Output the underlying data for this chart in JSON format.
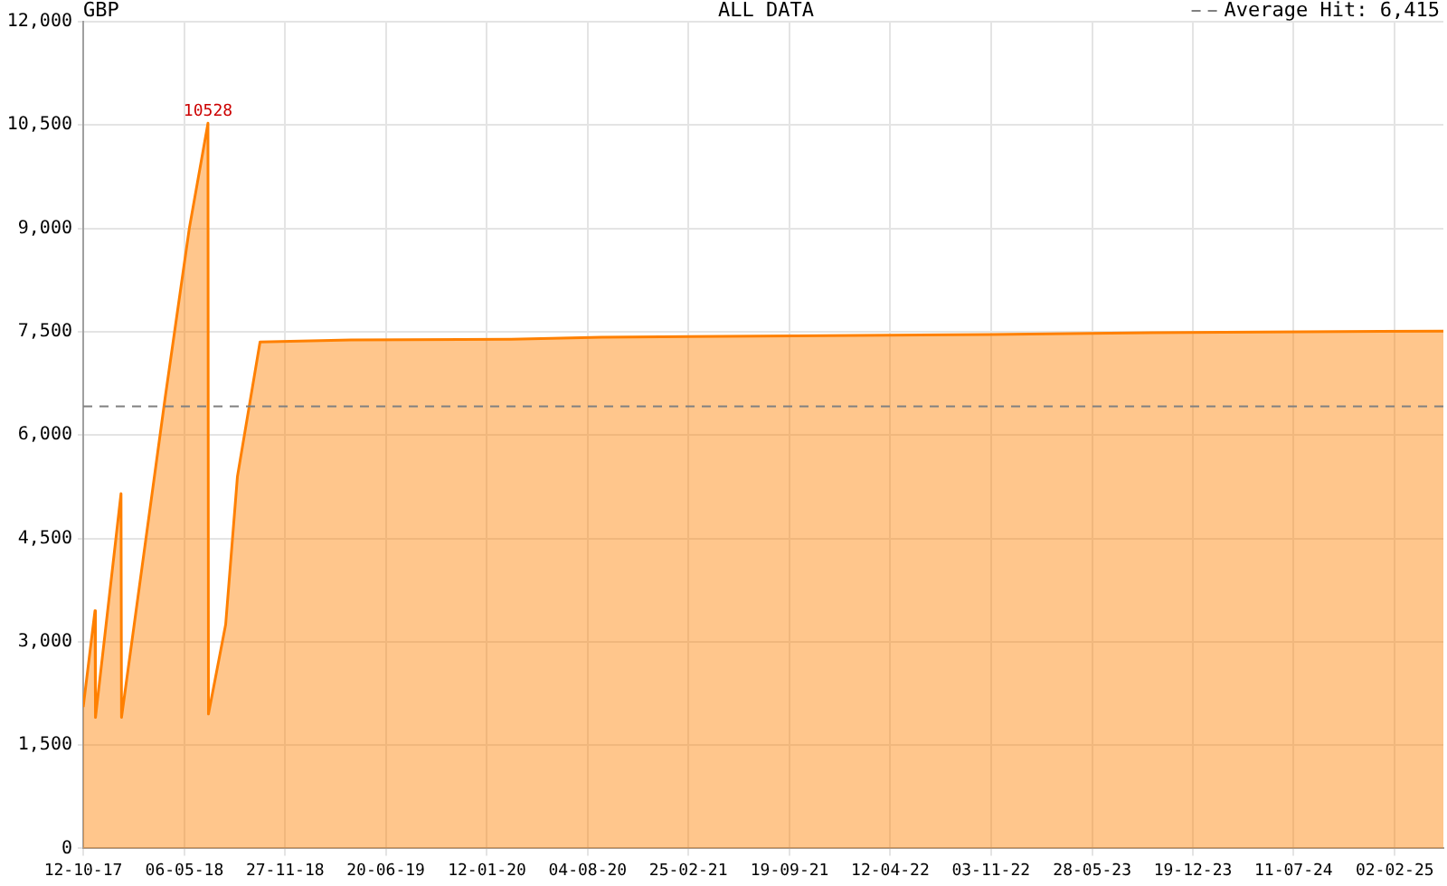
{
  "chart_data": {
    "type": "area",
    "title": "GBP",
    "subtitle": "ALL DATA",
    "series": [
      {
        "color": "#ff8000",
        "x": [
          "2017-10-12",
          "2017-11-05",
          "2017-11-06",
          "2017-12-28",
          "2017-12-29",
          "2018-03-28",
          "2018-05-16",
          "2018-06-23",
          "2018-06-24",
          "2018-07-29",
          "2018-08-22",
          "2018-10-07",
          "2019-04-10",
          "2020-03-01",
          "2020-09-01",
          "2021-10-01",
          "2022-11-01",
          "2023-12-01",
          "2025-05-12"
        ],
        "values": [
          2050,
          3450,
          1900,
          5150,
          1900,
          6550,
          9000,
          10528,
          1950,
          3250,
          5400,
          7350,
          7380,
          7390,
          7420,
          7440,
          7460,
          7490,
          7510
        ],
        "value_labels": [
          null,
          null,
          null,
          null,
          null,
          null,
          null,
          "10528",
          null,
          null,
          null,
          null,
          null,
          null,
          null,
          null,
          null,
          null,
          null
        ]
      }
    ],
    "xlim": [
      "2017-10-12",
      "2025-05-12"
    ],
    "xticks": [
      {
        "value": "2017-10-12",
        "label": "12-10-17"
      },
      {
        "value": "2018-05-06",
        "label": "06-05-18"
      },
      {
        "value": "2018-11-27",
        "label": "27-11-18"
      },
      {
        "value": "2019-06-20",
        "label": "20-06-19"
      },
      {
        "value": "2020-01-12",
        "label": "12-01-20"
      },
      {
        "value": "2020-08-04",
        "label": "04-08-20"
      },
      {
        "value": "2021-02-25",
        "label": "25-02-21"
      },
      {
        "value": "2021-09-19",
        "label": "19-09-21"
      },
      {
        "value": "2022-04-12",
        "label": "12-04-22"
      },
      {
        "value": "2022-11-03",
        "label": "03-11-22"
      },
      {
        "value": "2023-05-28",
        "label": "28-05-23"
      },
      {
        "value": "2023-12-19",
        "label": "19-12-23"
      },
      {
        "value": "2024-07-11",
        "label": "11-07-24"
      },
      {
        "value": "2025-02-02",
        "label": "02-02-25"
      }
    ],
    "ylim": [
      0,
      12000
    ],
    "yticks": [
      0,
      {
        "value": 1500,
        "label": "1,500"
      },
      {
        "value": 3000,
        "label": "3,000"
      },
      {
        "value": 4500,
        "label": "4,500"
      },
      {
        "value": 6000,
        "label": "6,000"
      },
      {
        "value": 7500,
        "label": "7,500"
      },
      {
        "value": 9000,
        "label": "9,000"
      },
      {
        "value": 10500,
        "label": "10,500"
      },
      {
        "value": 12000,
        "label": "12,000"
      }
    ],
    "grid": true,
    "ref_lines": [
      {
        "axis": "y",
        "value": 6415,
        "label": "Average Hit: 6,415",
        "color": "#808080",
        "line_style": "dashed"
      }
    ]
  }
}
